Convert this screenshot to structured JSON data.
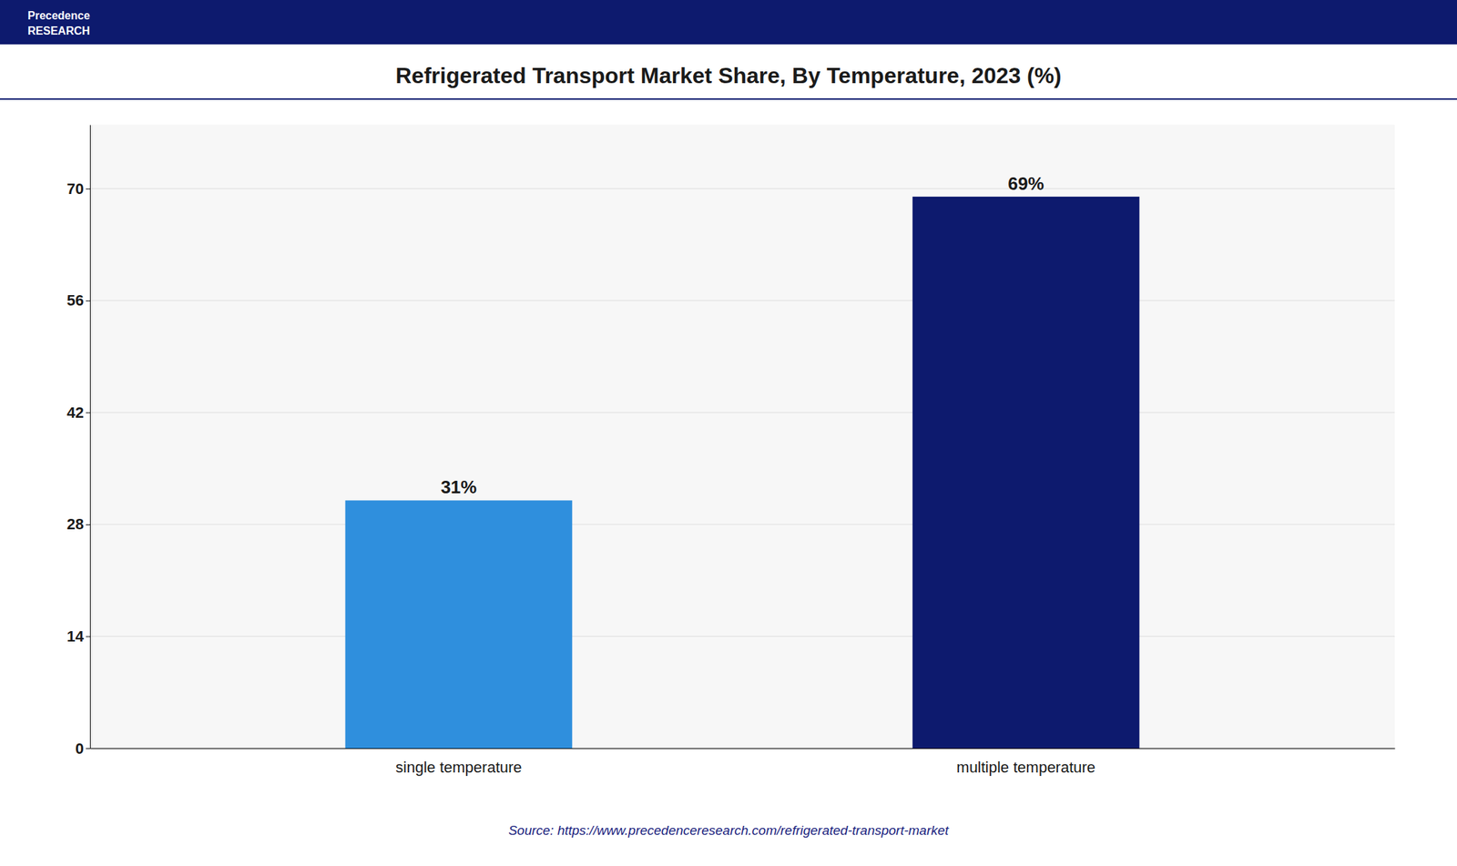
{
  "chart_data": {
    "type": "bar",
    "title": "Refrigerated Transport Market Share, By Temperature, 2023 (%)",
    "categories": [
      "single temperature",
      "multiple temperature"
    ],
    "values": [
      31,
      69
    ],
    "value_labels": [
      "31%",
      "69%"
    ],
    "data_labels": true,
    "colors": [
      "#2f8fdd",
      "#0d1a6e"
    ],
    "ylim": [
      0,
      78
    ],
    "yticks": [
      0,
      14,
      28,
      42,
      56,
      70
    ],
    "grid": true,
    "annotations": [
      "Source: https://www.precedenceresearch.com/refrigerated-transport-market",
      "Precedence",
      "RESEARCH"
    ]
  }
}
